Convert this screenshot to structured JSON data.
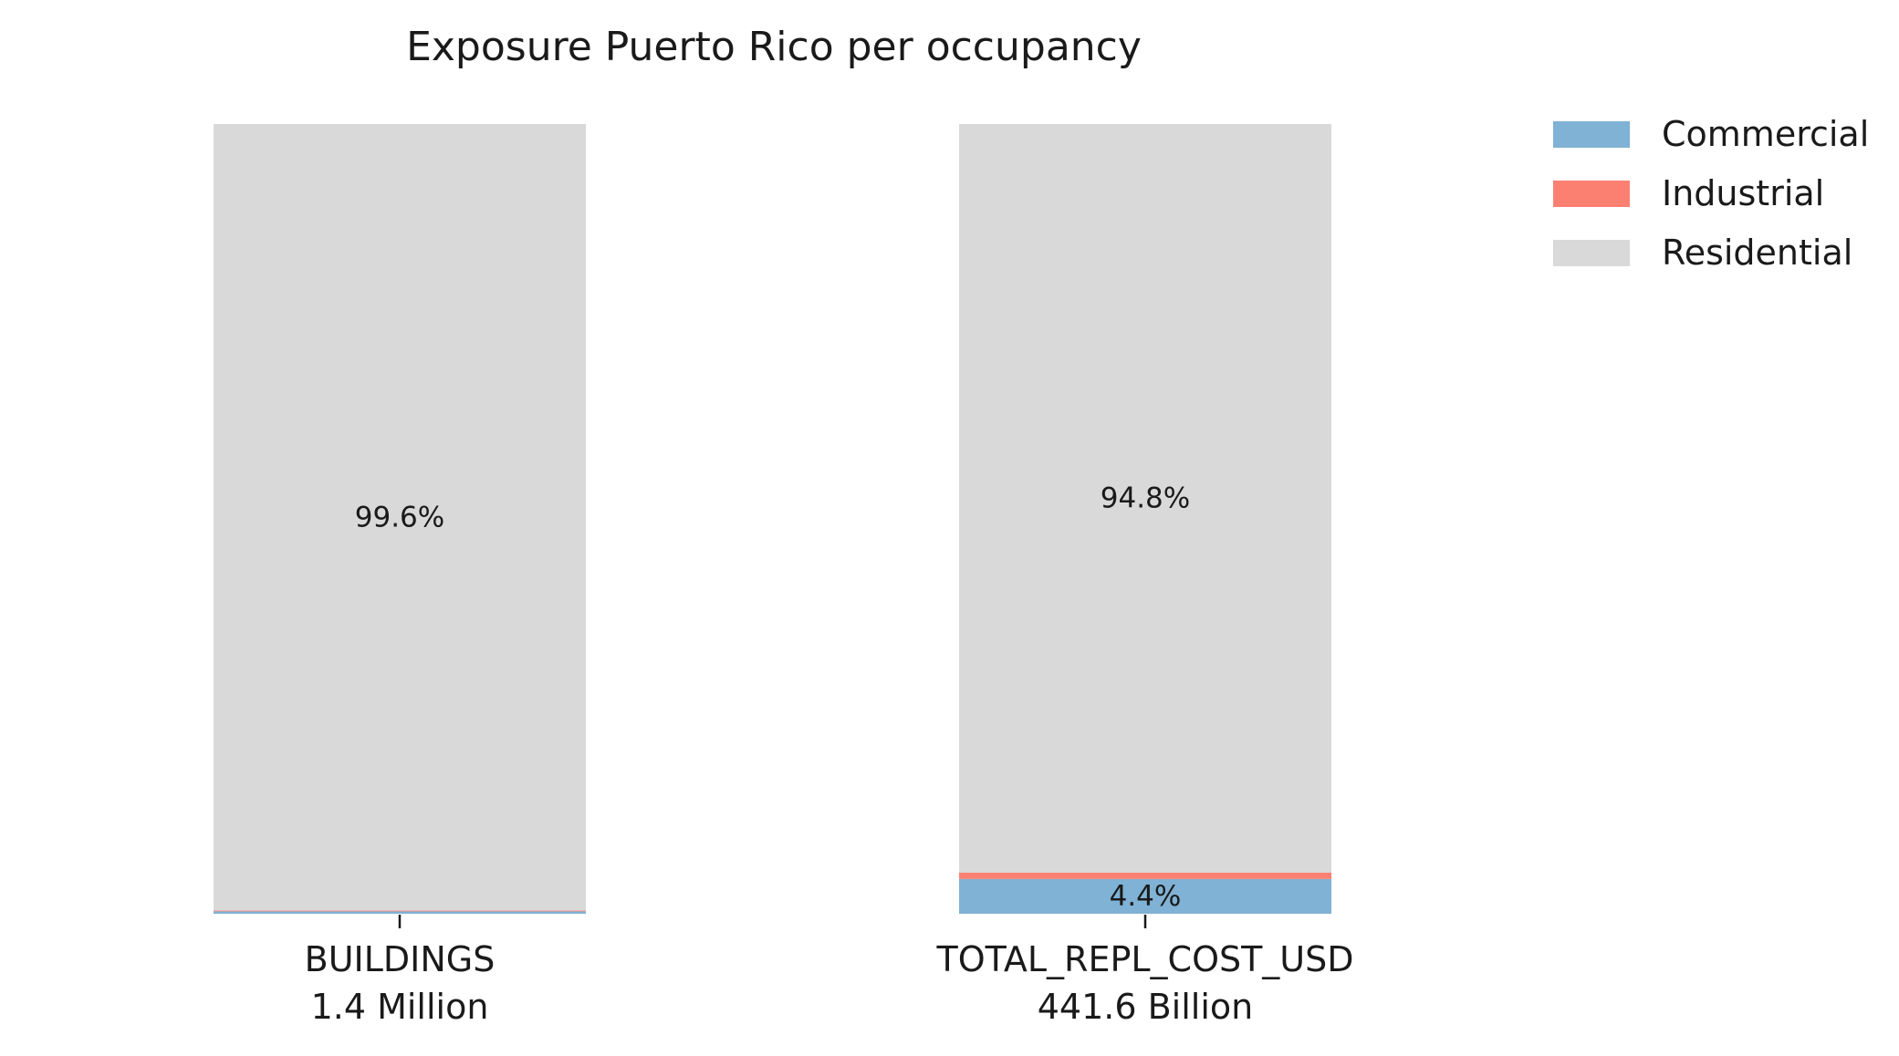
{
  "chart_data": {
    "type": "bar",
    "stacked": true,
    "normalized": true,
    "title": "Exposure Puerto Rico per occupancy",
    "xlabel": "",
    "ylabel": "",
    "ylim": [
      0,
      1
    ],
    "grid": false,
    "legend_position": "top-right, outside plot",
    "categories": [
      {
        "name": "BUILDINGS",
        "total": "1.4 Million"
      },
      {
        "name": "TOTAL_REPL_COST_USD",
        "total": "441.6 Billion"
      }
    ],
    "series": [
      {
        "name": "Commercial",
        "color": "#7fb2d4",
        "values": [
          0.3,
          4.4
        ]
      },
      {
        "name": "Industrial",
        "color": "#fb8072",
        "values": [
          0.1,
          0.8
        ]
      },
      {
        "name": "Residential",
        "color": "#d9d9d9",
        "values": [
          99.6,
          94.8
        ]
      }
    ],
    "data_labels": [
      {
        "category": 0,
        "series": "Residential",
        "text": "99.6%"
      },
      {
        "category": 1,
        "series": "Residential",
        "text": "94.8%"
      },
      {
        "category": 1,
        "series": "Commercial",
        "text": "4.4%"
      }
    ]
  }
}
